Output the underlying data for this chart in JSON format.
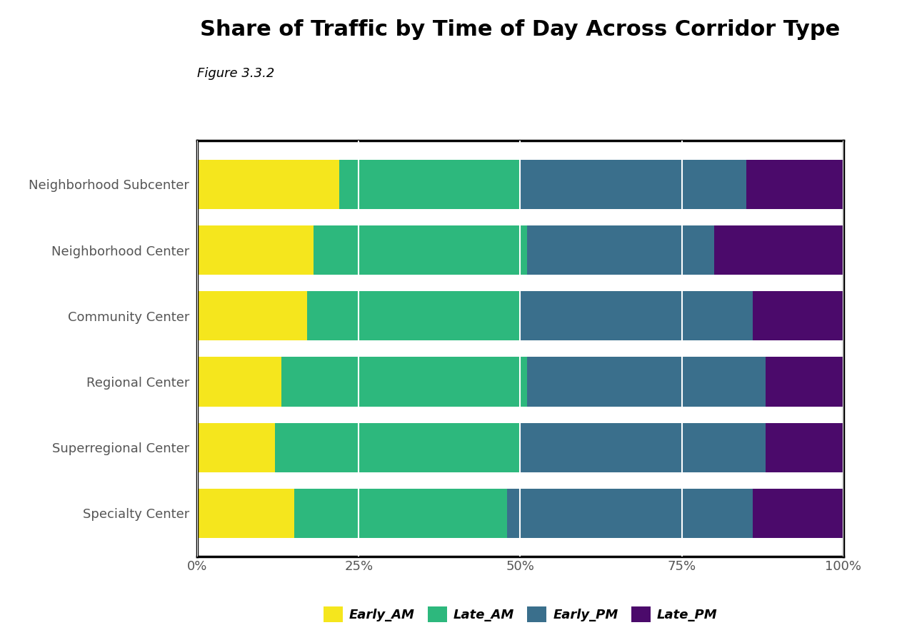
{
  "title": "Share of Traffic by Time of Day Across Corridor Type",
  "subtitle": "Figure 3.3.2",
  "categories": [
    "Specialty Center",
    "Superregional Center",
    "Regional Center",
    "Community Center",
    "Neighborhood Center",
    "Neighborhood Subcenter"
  ],
  "segments": [
    "Early_AM",
    "Late_AM",
    "Early_PM",
    "Late_PM"
  ],
  "values": {
    "Neighborhood Subcenter": [
      0.22,
      0.28,
      0.35,
      0.15
    ],
    "Neighborhood Center": [
      0.18,
      0.33,
      0.29,
      0.2
    ],
    "Community Center": [
      0.17,
      0.33,
      0.36,
      0.14
    ],
    "Regional Center": [
      0.13,
      0.38,
      0.37,
      0.12
    ],
    "Superregional Center": [
      0.12,
      0.38,
      0.38,
      0.12
    ],
    "Specialty Center": [
      0.15,
      0.33,
      0.38,
      0.14
    ]
  },
  "colors": {
    "Early_AM": "#F5E61D",
    "Late_AM": "#2DB87D",
    "Early_PM": "#3A6F8C",
    "Late_PM": "#4B0A6B"
  },
  "xlabel_ticks": [
    "0%",
    "25%",
    "50%",
    "75%",
    "100%"
  ],
  "xlabel_vals": [
    0,
    0.25,
    0.5,
    0.75,
    1.0
  ],
  "bar_height": 0.75,
  "background_color": "#ffffff",
  "title_fontsize": 22,
  "subtitle_fontsize": 13,
  "tick_fontsize": 13,
  "label_fontsize": 13,
  "legend_fontsize": 13
}
